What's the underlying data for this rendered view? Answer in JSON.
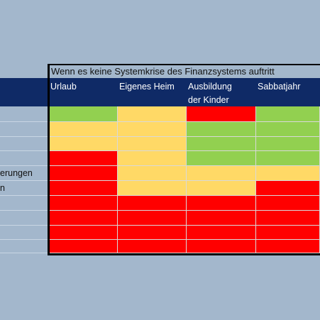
{
  "title": "Wenn es keine Systemkrise des Finanzsystems auftritt",
  "columns": [
    "Urlaub",
    "Eigenes Heim",
    "Ausbildung\nder Kinder",
    "Sabbatjahr"
  ],
  "row_labels": [
    "",
    "",
    "",
    "",
    "erungen",
    "n",
    "",
    "",
    "",
    ""
  ],
  "colors": {
    "green": "#92d050",
    "yellow": "#ffd966",
    "red": "#ff0000"
  },
  "grid": [
    [
      "green",
      "yellow",
      "red",
      "green"
    ],
    [
      "yellow",
      "yellow",
      "green",
      "green"
    ],
    [
      "yellow",
      "yellow",
      "green",
      "green"
    ],
    [
      "red",
      "yellow",
      "green",
      "green"
    ],
    [
      "red",
      "yellow",
      "yellow",
      "yellow"
    ],
    [
      "red",
      "yellow",
      "yellow",
      "red"
    ],
    [
      "red",
      "red",
      "red",
      "red"
    ],
    [
      "red",
      "red",
      "red",
      "red"
    ],
    [
      "red",
      "red",
      "red",
      "red"
    ],
    [
      "red",
      "red",
      "red",
      "red"
    ]
  ]
}
